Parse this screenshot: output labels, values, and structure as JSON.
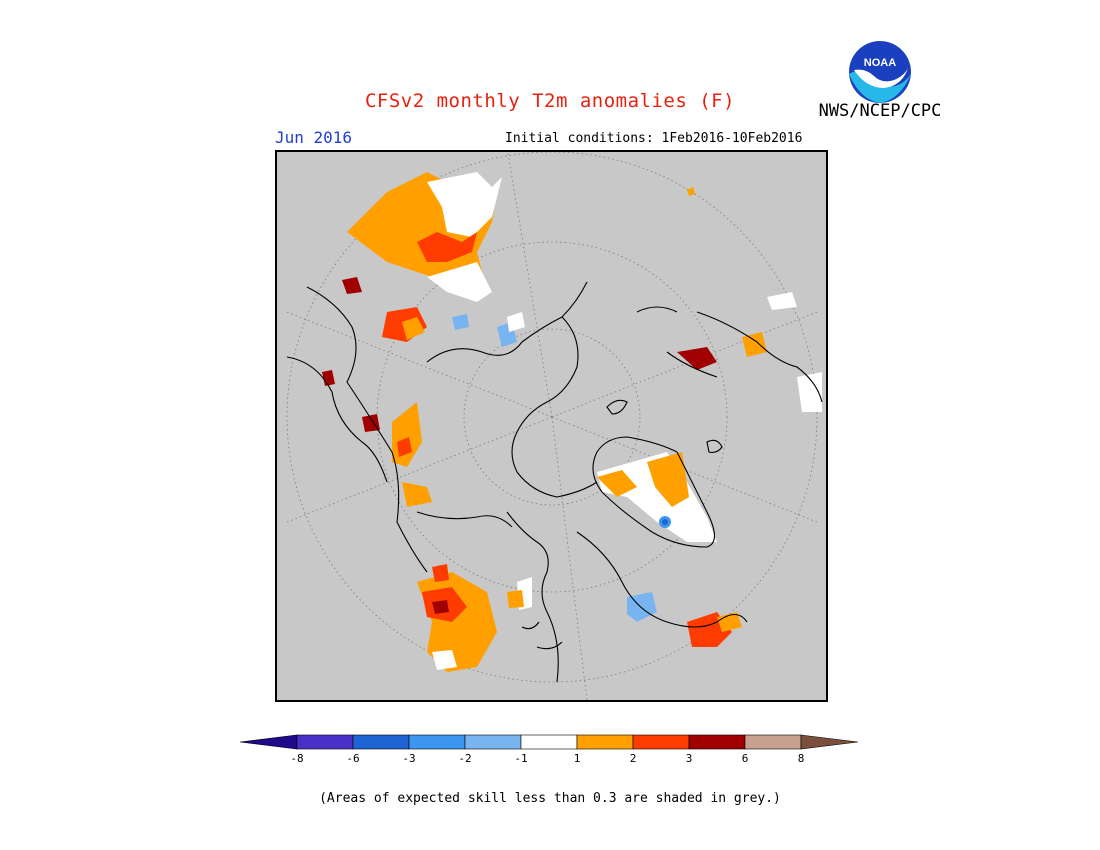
{
  "header": {
    "title": "CFSv2 monthly T2m anomalies (F)",
    "agency": "NWS/NCEP/CPC",
    "logo_text": "NOAA",
    "month": "Jun 2016",
    "initial_conditions": "Initial conditions: 1Feb2016-10Feb2016"
  },
  "legend": {
    "ticks": [
      "-8",
      "-6",
      "-3",
      "-2",
      "-1",
      "1",
      "2",
      "3",
      "6",
      "8"
    ],
    "colors": [
      "#4830c8",
      "#1e64d2",
      "#3c96f0",
      "#78b4f0",
      "#ffffff",
      "#ffa000",
      "#ff3c00",
      "#a00000",
      "#c8a090"
    ],
    "low_arrow_color": "#1e0a8c",
    "high_arrow_color": "#7a503c"
  },
  "colors": {
    "no_skill_grey": "#c8c8c8",
    "title_red": "#e8210f",
    "month_blue": "#1f3fd6"
  },
  "footer": {
    "note": "(Areas of expected skill less than 0.3 are shaded in grey.)"
  }
}
